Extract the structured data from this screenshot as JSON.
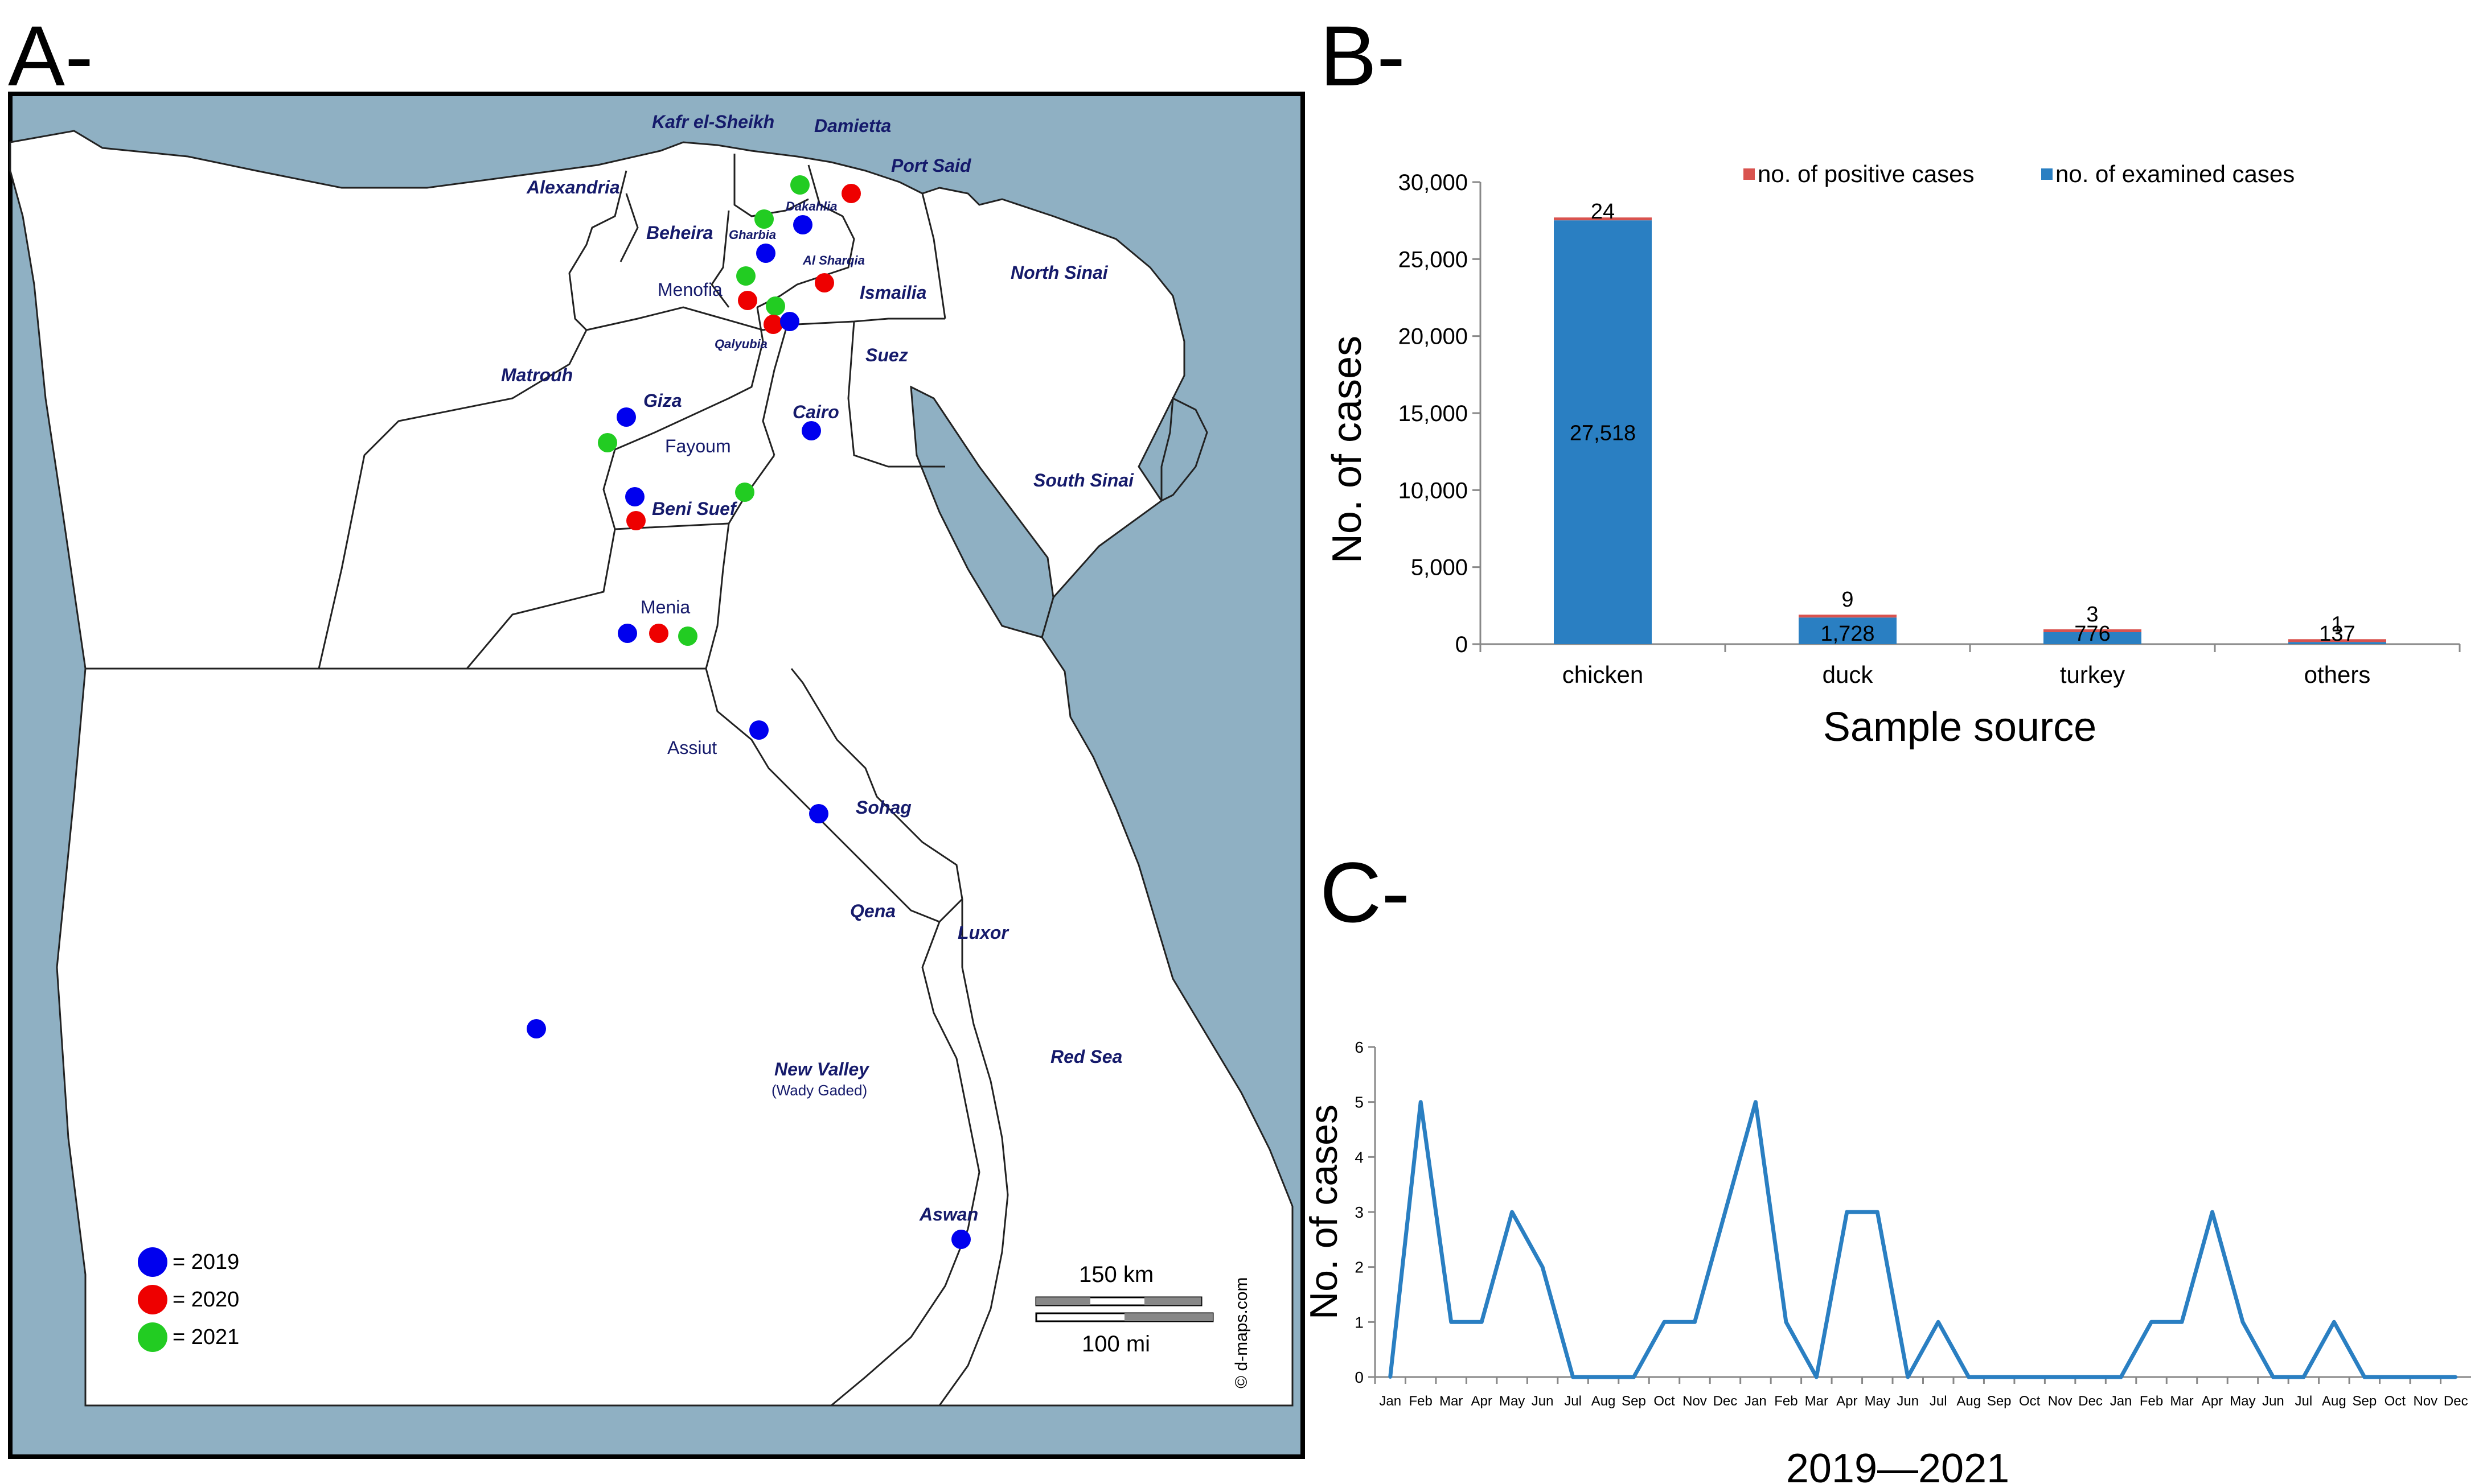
{
  "panel_labels": {
    "a": "A-",
    "b": "B-",
    "c": "C-"
  },
  "map": {
    "regions": [
      {
        "id": "kafr",
        "label": "Kafr el-Sheikh",
        "style": "italic"
      },
      {
        "id": "damietta",
        "label": "Damietta",
        "style": "italic"
      },
      {
        "id": "portsaid",
        "label": "Port Said",
        "style": "italic"
      },
      {
        "id": "alexandria",
        "label": "Alexandria",
        "style": "italic"
      },
      {
        "id": "beheira",
        "label": "Beheira",
        "style": "italic"
      },
      {
        "id": "dakahlia",
        "label": "Dakahlia",
        "style": "italic"
      },
      {
        "id": "gharbia",
        "label": "Gharbia",
        "style": "italic"
      },
      {
        "id": "menofia",
        "label": "Menofia",
        "style": "normal"
      },
      {
        "id": "alsharqia",
        "label": "Al Sharqia",
        "style": "italic"
      },
      {
        "id": "ismailia",
        "label": "Ismailia",
        "style": "italic"
      },
      {
        "id": "northsinai",
        "label": "North Sinai",
        "style": "italic"
      },
      {
        "id": "qalyubia",
        "label": "Qalyubia",
        "style": "italic"
      },
      {
        "id": "matrouh",
        "label": "Matrouh",
        "style": "italic"
      },
      {
        "id": "giza",
        "label": "Giza",
        "style": "italic"
      },
      {
        "id": "suez",
        "label": "Suez",
        "style": "italic"
      },
      {
        "id": "cairo",
        "label": "Cairo",
        "style": "italic"
      },
      {
        "id": "fayoum",
        "label": "Fayoum",
        "style": "normal"
      },
      {
        "id": "southsinai",
        "label": "South Sinai",
        "style": "italic"
      },
      {
        "id": "benisuef",
        "label": "Beni Suef",
        "style": "italic"
      },
      {
        "id": "menia",
        "label": "Menia",
        "style": "normal"
      },
      {
        "id": "assiut",
        "label": "Assiut",
        "style": "normal"
      },
      {
        "id": "sohag",
        "label": "Sohag",
        "style": "italic"
      },
      {
        "id": "qena",
        "label": "Qena",
        "style": "italic"
      },
      {
        "id": "luxor",
        "label": "Luxor",
        "style": "italic"
      },
      {
        "id": "newvalley",
        "label": "New Valley",
        "style": "italic"
      },
      {
        "id": "wadygaded",
        "label": "(Wady Gaded)",
        "style": "normal"
      },
      {
        "id": "redsea",
        "label": "Red Sea",
        "style": "italic"
      },
      {
        "id": "aswan",
        "label": "Aswan",
        "style": "italic"
      }
    ],
    "legend": [
      {
        "label": "= 2019",
        "color": "#0000ee"
      },
      {
        "label": "= 2020",
        "color": "#ee0000"
      },
      {
        "label": "= 2021",
        "color": "#22cc22"
      }
    ],
    "outbreak_markers": [
      {
        "region": "Damietta",
        "year": 2021
      },
      {
        "region": "Damietta",
        "year": 2020
      },
      {
        "region": "Dakahlia",
        "year": 2019
      },
      {
        "region": "Gharbia",
        "year": 2021
      },
      {
        "region": "Gharbia",
        "year": 2019
      },
      {
        "region": "Al Sharqia",
        "year": 2020
      },
      {
        "region": "Menofia",
        "year": 2021
      },
      {
        "region": "Menofia",
        "year": 2020
      },
      {
        "region": "Qalyubia",
        "year": 2021
      },
      {
        "region": "Qalyubia",
        "year": 2020
      },
      {
        "region": "Qalyubia",
        "year": 2019
      },
      {
        "region": "Cairo",
        "year": 2019
      },
      {
        "region": "Giza",
        "year": 2019
      },
      {
        "region": "Giza",
        "year": 2021
      },
      {
        "region": "Fayoum",
        "year": 2021
      },
      {
        "region": "Beni Suef",
        "year": 2019
      },
      {
        "region": "Beni Suef",
        "year": 2020
      },
      {
        "region": "Menia",
        "year": 2019
      },
      {
        "region": "Menia",
        "year": 2020
      },
      {
        "region": "Menia",
        "year": 2021
      },
      {
        "region": "Assiut",
        "year": 2019
      },
      {
        "region": "Sohag",
        "year": 2019
      },
      {
        "region": "New Valley",
        "year": 2019
      },
      {
        "region": "Aswan",
        "year": 2019
      }
    ],
    "scale_km": "150 km",
    "scale_mi": "100 mi",
    "credit": "© d-maps.com"
  },
  "chart_data": [
    {
      "type": "bar",
      "stacked": true,
      "panel": "B",
      "categories": [
        "chicken",
        "duck",
        "turkey",
        "others"
      ],
      "series": [
        {
          "name": "no. of examined cases",
          "color": "#2a7fc2",
          "values": [
            27518,
            1728,
            776,
            137
          ],
          "labels": [
            "27,518",
            "1,728",
            "776",
            "137"
          ]
        },
        {
          "name": "no. of positive cases",
          "color": "#d9534f",
          "values": [
            24,
            9,
            3,
            1
          ],
          "labels": [
            "24",
            "9",
            "3",
            "1"
          ]
        }
      ],
      "legend": [
        "no. of positive cases",
        "no. of examined cases"
      ],
      "legend_position": "top",
      "xlabel": "Sample source",
      "ylabel": "No. of cases",
      "ylim": [
        0,
        30000
      ],
      "yticks": [
        0,
        5000,
        10000,
        15000,
        20000,
        25000,
        30000
      ],
      "ytick_labels": [
        "0",
        "5,000",
        "10,000",
        "15,000",
        "20,000",
        "25,000",
        "30,000"
      ]
    },
    {
      "type": "line",
      "panel": "C",
      "x": [
        "Jan",
        "Feb",
        "Mar",
        "Apr",
        "May",
        "Jun",
        "Jul",
        "Aug",
        "Sep",
        "Oct",
        "Nov",
        "Dec",
        "Jan",
        "Feb",
        "Mar",
        "Apr",
        "May",
        "Jun",
        "Jul",
        "Aug",
        "Sep",
        "Oct",
        "Nov",
        "Dec",
        "Jan",
        "Feb",
        "Mar",
        "Apr",
        "May",
        "Jun",
        "Jul",
        "Aug",
        "Sep",
        "Oct",
        "Nov",
        "Dec"
      ],
      "series": [
        {
          "name": "cases",
          "color": "#2a7fc2",
          "values": [
            0,
            5,
            1,
            1,
            3,
            2,
            0,
            0,
            0,
            1,
            1,
            3,
            5,
            1,
            0,
            3,
            3,
            0,
            1,
            0,
            0,
            0,
            0,
            0,
            0,
            1,
            1,
            3,
            1,
            0,
            0,
            1,
            0,
            0,
            0,
            0
          ]
        }
      ],
      "xlabel": "2019—2021",
      "ylabel": "No. of cases",
      "ylim": [
        0,
        6
      ],
      "yticks": [
        0,
        1,
        2,
        3,
        4,
        5,
        6
      ]
    }
  ]
}
